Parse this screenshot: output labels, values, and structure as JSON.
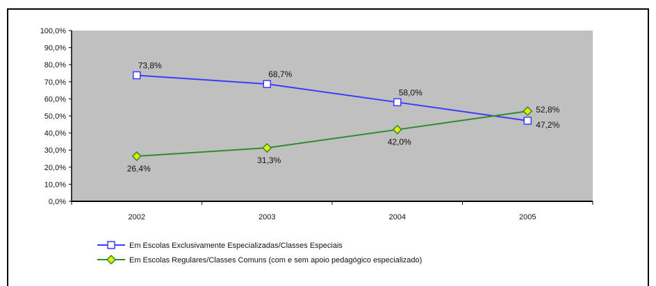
{
  "chart_data": {
    "type": "line",
    "categories": [
      "2002",
      "2003",
      "2004",
      "2005"
    ],
    "ylim": [
      0,
      100
    ],
    "yticks": [
      "0,0%",
      "10,0%",
      "20,0%",
      "30,0%",
      "40,0%",
      "50,0%",
      "60,0%",
      "70,0%",
      "80,0%",
      "90,0%",
      "100,0%"
    ],
    "plot_background": "#c0c0c0",
    "series": [
      {
        "name": "Em Escolas Exclusivamente Especializadas/Classes Especiais",
        "values": [
          73.8,
          68.7,
          58.0,
          47.2
        ],
        "labels": [
          "73,8%",
          "68,7%",
          "58,0%",
          "47,2%"
        ],
        "color": "#3b3bff",
        "marker": "square"
      },
      {
        "name": "Em Escolas Regulares/Classes Comuns (com e sem apoio pedagógico especializado)",
        "values": [
          26.4,
          31.3,
          42.0,
          52.8
        ],
        "labels": [
          "26,4%",
          "31,3%",
          "42,0%",
          "52,8%"
        ],
        "color": "#2e8b2e",
        "marker": "diamond"
      }
    ],
    "legend_position": "bottom"
  }
}
